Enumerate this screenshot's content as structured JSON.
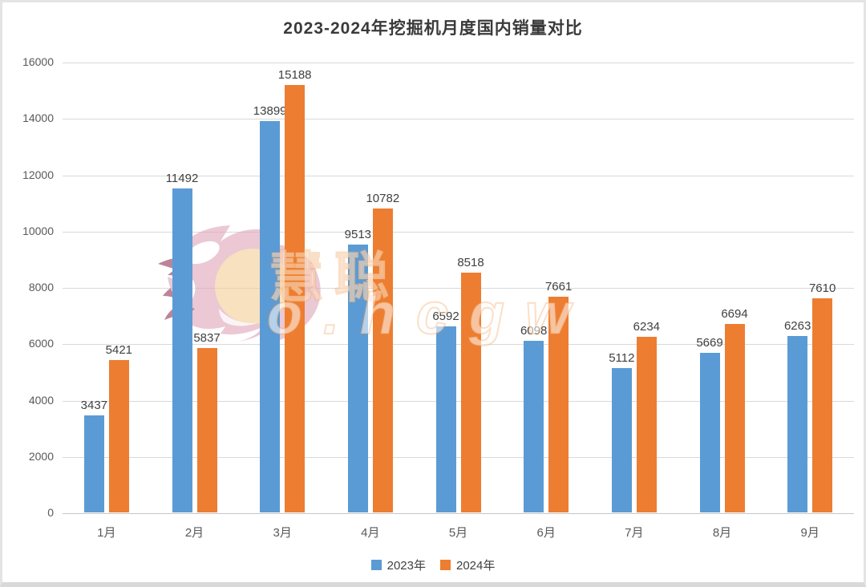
{
  "title": "2023-2024年挖掘机月度国内销量对比",
  "chart_data": {
    "type": "bar",
    "title": "2023-2024年挖掘机月度国内销量对比",
    "categories": [
      "1月",
      "2月",
      "3月",
      "4月",
      "5月",
      "6月",
      "7月",
      "8月",
      "9月"
    ],
    "series": [
      {
        "name": "2023年",
        "color": "#5B9BD5",
        "values": [
          3437,
          11492,
          13899,
          9513,
          6592,
          6098,
          5112,
          5669,
          6263
        ]
      },
      {
        "name": "2024年",
        "color": "#ED7D31",
        "values": [
          5421,
          5837,
          15188,
          10782,
          8518,
          7661,
          6234,
          6694,
          7610
        ]
      }
    ],
    "xlabel": "",
    "ylabel": "",
    "ylim": [
      0,
      16000
    ],
    "ytick_step": 2000,
    "grid": true,
    "legend_position": "bottom",
    "data_labels": true
  },
  "colors": {
    "series_2023": "#5B9BD5",
    "series_2024": "#ED7D31",
    "gridline": "#d9d9d9",
    "axis_text": "#595959",
    "label_text": "#404040"
  },
  "watermark": {
    "line1": "慧聪",
    "line2": "o.hcgw"
  }
}
